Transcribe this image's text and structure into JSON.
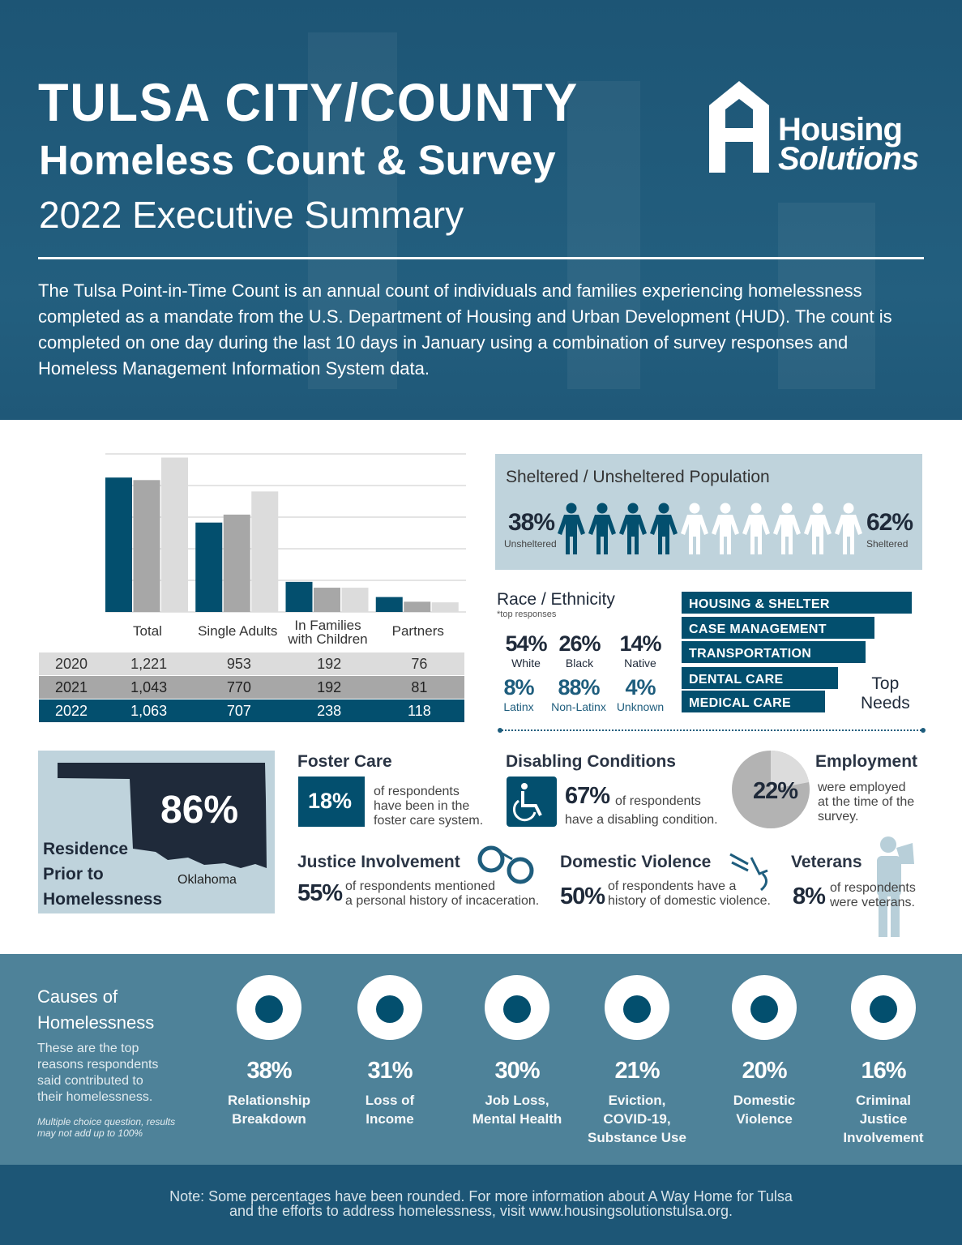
{
  "header": {
    "title": "TULSA CITY/COUNTY",
    "subtitle": "Homeless Count & Survey",
    "edition": "2022 Executive Summary",
    "intro": "The Tulsa Point-in-Time Count is an annual count of individuals and families experiencing homelessness completed as a mandate from the U.S. Department of Housing and Urban Development (HUD). The count is completed on one day during the last 10 days in January using a combination of survey responses and Homeless Management Information System data.",
    "logo": {
      "line1": "Housing",
      "line2": "Solutions"
    }
  },
  "colors": {
    "dark_blue": "#034f6e",
    "mid_gray": "#a7a7a7",
    "light_gray": "#dcdcdc",
    "panel": "#bfd3dc",
    "causes_bg": "#4e8299"
  },
  "chart_data": {
    "type": "bar",
    "categories": [
      "Total",
      "Single Adults",
      "In Families with Children",
      "Partners"
    ],
    "category_lines": [
      [
        "Total"
      ],
      [
        "Single Adults"
      ],
      [
        "In Families",
        "with Children"
      ],
      [
        "Partners"
      ]
    ],
    "series": [
      {
        "name": "2022",
        "values": [
          1063,
          707,
          238,
          118
        ],
        "color": "#034f6e"
      },
      {
        "name": "2021",
        "values": [
          1043,
          770,
          192,
          81
        ],
        "color": "#a7a7a7"
      },
      {
        "name": "2020",
        "values": [
          1221,
          953,
          192,
          76
        ],
        "color": "#dcdcdc"
      }
    ],
    "ylim": [
      0,
      1250
    ],
    "grid": true,
    "table": [
      [
        "2020",
        "1,221",
        "953",
        "192",
        "76"
      ],
      [
        "2021",
        "1,043",
        "770",
        "192",
        "81"
      ],
      [
        "2022",
        "1,063",
        "707",
        "238",
        "118"
      ]
    ]
  },
  "shelter": {
    "title": "Sheltered / Unsheltered Population",
    "unsheltered_pct": "38%",
    "unsheltered_label": "Unsheltered",
    "sheltered_pct": "62%",
    "sheltered_label": "Sheltered",
    "icons_total": 10,
    "icons_unsheltered": 4
  },
  "race": {
    "title": "Race / Ethnicity",
    "note": "*top responses",
    "items": [
      {
        "pct": "54%",
        "label": "White"
      },
      {
        "pct": "26%",
        "label": "Black"
      },
      {
        "pct": "14%",
        "label": "Native"
      },
      {
        "pct": "8%",
        "label": "Latinx"
      },
      {
        "pct": "88%",
        "label": "Non-Latinx"
      },
      {
        "pct": "4%",
        "label": "Unknown"
      }
    ]
  },
  "needs": {
    "title_line1": "Top",
    "title_line2": "Needs",
    "items": [
      "HOUSING & SHELTER",
      "CASE MANAGEMENT",
      "TRANSPORTATION",
      "DENTAL CARE",
      "MEDICAL CARE"
    ]
  },
  "residence": {
    "pct": "86%",
    "state": "Oklahoma",
    "label_lines": [
      "Residence",
      "Prior to",
      "Homelessness"
    ]
  },
  "foster": {
    "title": "Foster Care",
    "pct": "18%",
    "text_lines": [
      "of respondents",
      "have been in the",
      "foster care system."
    ]
  },
  "disabling": {
    "title": "Disabling Conditions",
    "pct": "67%",
    "text1": "of respondents",
    "text2": "have a disabling condition."
  },
  "employment": {
    "title": "Employment",
    "pct": "22%",
    "value": 22,
    "text_lines": [
      "were employed",
      "at the time of the",
      "survey."
    ]
  },
  "justice": {
    "title": "Justice Involvement",
    "pct": "55%",
    "text1": "of respondents mentioned",
    "text2": "a personal history of incaceration."
  },
  "domestic": {
    "title": "Domestic Violence",
    "pct": "50%",
    "text1": "of respondents have a",
    "text2": "history of domestic violence."
  },
  "veterans": {
    "title": "Veterans",
    "pct": "8%",
    "text1": "of respondents",
    "text2": "were veterans."
  },
  "causes": {
    "title_line1": "Causes of",
    "title_line2": "Homelessness",
    "desc_lines": [
      "These are the top",
      "reasons respondents",
      "said contributed to",
      "their homelessness."
    ],
    "note_lines": [
      "Multiple choice question, results",
      "may not add up to 100%"
    ],
    "items": [
      {
        "pct": "38%",
        "lines": [
          "Relationship",
          "Breakdown"
        ],
        "icon": "relationship-icon"
      },
      {
        "pct": "31%",
        "lines": [
          "Loss of",
          "Income"
        ],
        "icon": "money-bag-icon"
      },
      {
        "pct": "30%",
        "lines": [
          "Job Loss,",
          "Mental Health"
        ],
        "icon": "head-gears-icon"
      },
      {
        "pct": "21%",
        "lines": [
          "Eviction,",
          "COVID-19,",
          "Substance Use"
        ],
        "icon": "house-icon"
      },
      {
        "pct": "20%",
        "lines": [
          "Domestic",
          "Violence"
        ],
        "icon": "distressed-person-icon"
      },
      {
        "pct": "16%",
        "lines": [
          "Criminal",
          "Justice",
          "Involvement"
        ],
        "icon": "jail-icon"
      }
    ]
  },
  "footer": {
    "line1": "Note: Some percentages have been rounded. For more information about A Way Home for Tulsa",
    "line2": "and the efforts to address homelessness, visit www.housingsolutionstulsa.org."
  }
}
